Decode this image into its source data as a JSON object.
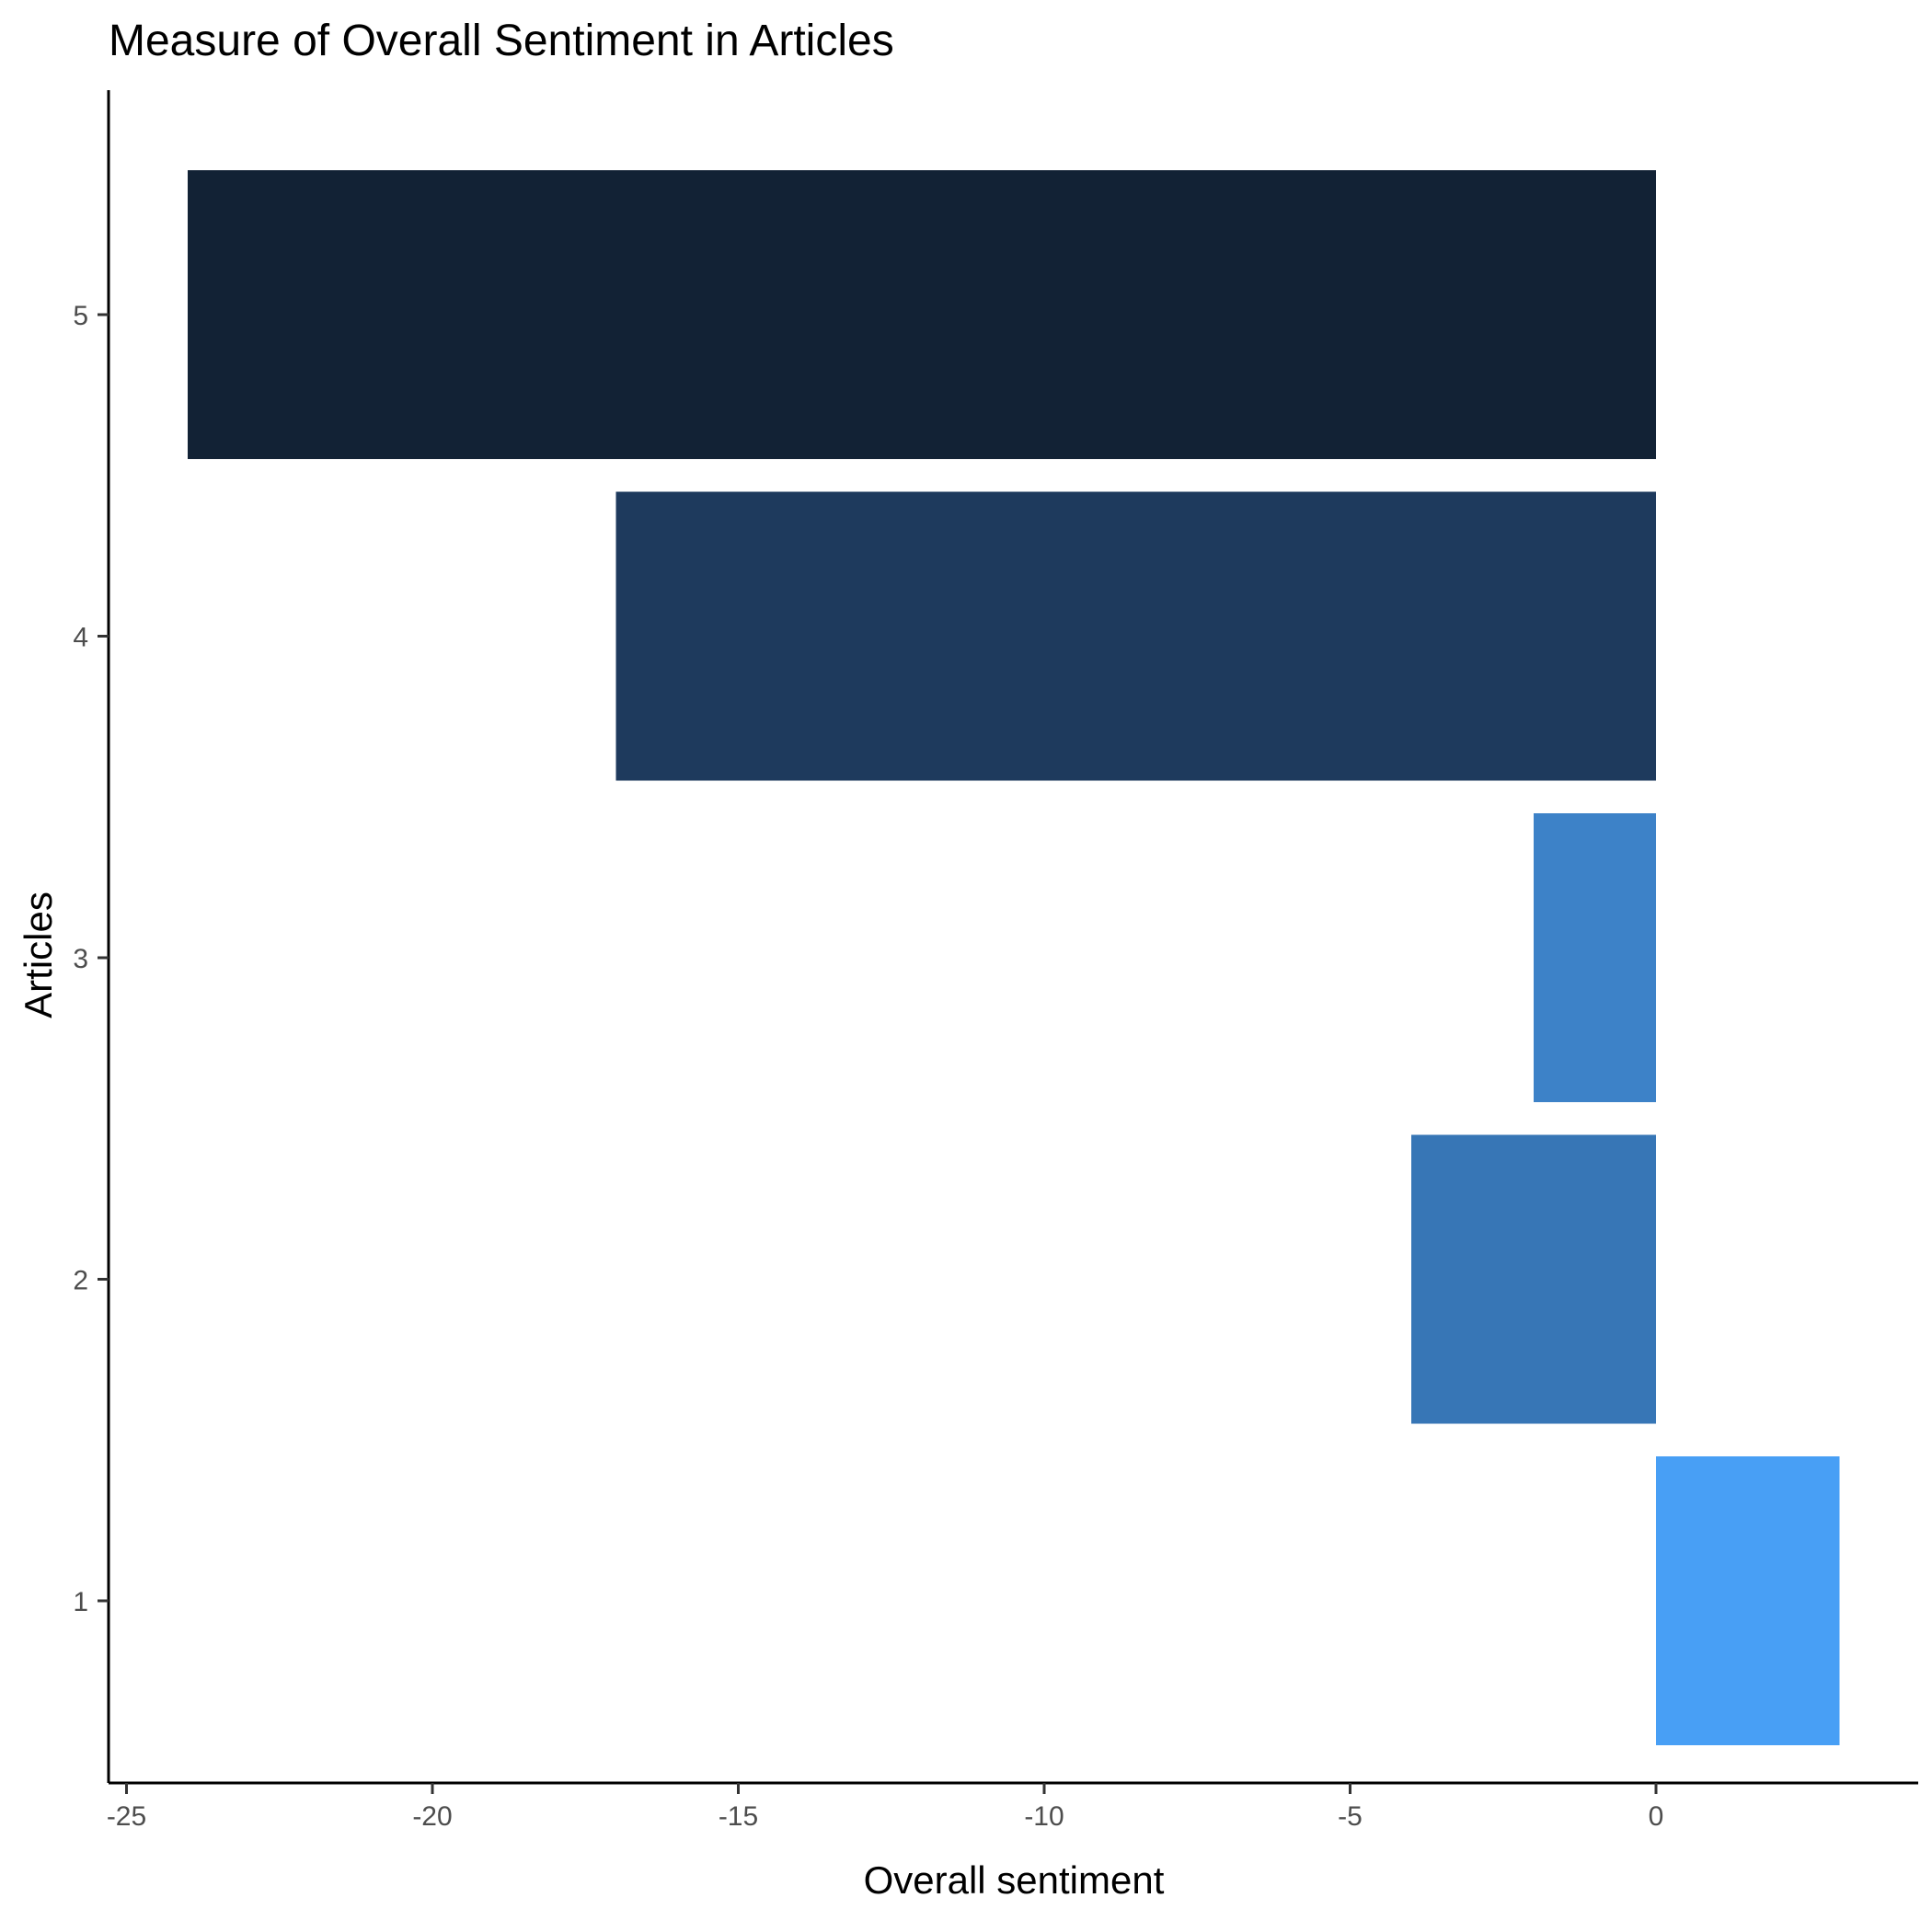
{
  "chart_data": {
    "type": "bar",
    "orientation": "horizontal",
    "title": "Measure of Overall Sentiment in Articles",
    "xlabel": "Overall sentiment",
    "ylabel": "Articles",
    "categories": [
      "1",
      "2",
      "3",
      "4",
      "5"
    ],
    "values": [
      3,
      -4,
      -2,
      -17,
      -24
    ],
    "colors": [
      "#489FF5",
      "#3776B6",
      "#3D82C8",
      "#1E3A5D",
      "#122235"
    ],
    "xlim": [
      -25,
      4.3
    ],
    "xticks": [
      -25,
      -20,
      -15,
      -10,
      -5,
      0
    ],
    "xtick_labels": [
      "-25",
      "-20",
      "-15",
      "-10",
      "-5",
      "0"
    ],
    "grid": false,
    "legend": "none"
  }
}
